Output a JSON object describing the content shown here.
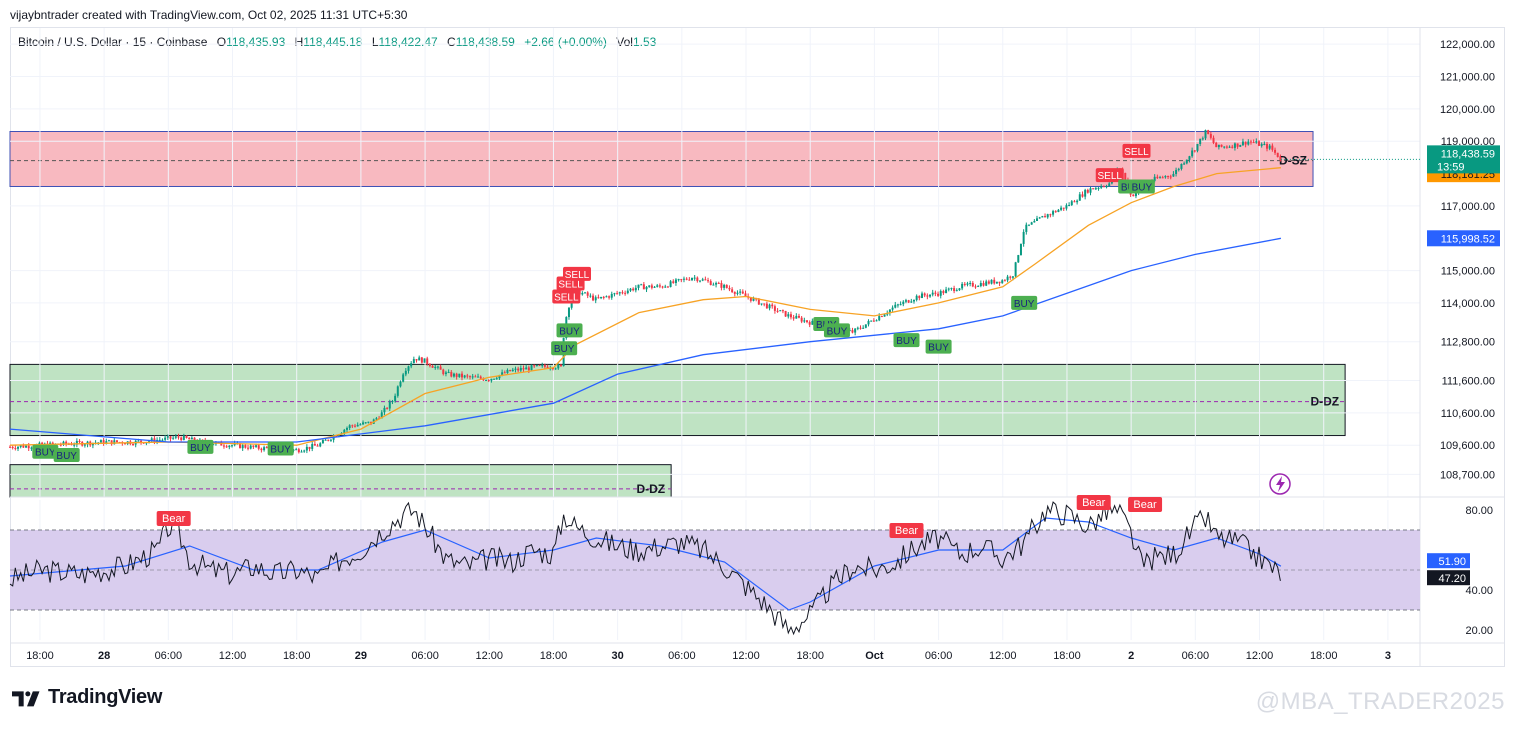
{
  "header": {
    "credit": "vijaybntrader created with TradingView.com, Oct 02, 2025 11:31 UTC+5:30"
  },
  "legend": {
    "symbol": "Bitcoin / U.S. Dollar · 15 · Coinbase",
    "o_label": "O",
    "o_value": "118,435.93",
    "h_label": "H",
    "h_value": "118,445.18",
    "l_label": "L",
    "l_value": "118,422.47",
    "c_label": "C",
    "c_value": "118,438.59",
    "change": "+2.66 (+0.00%)",
    "vol_label": "Vol",
    "vol_value": "1.53"
  },
  "colors": {
    "up": "#089981",
    "down": "#f23645",
    "ema_fast": "#f7a325",
    "ema_slow": "#2962ff",
    "supply_fill": "#f8b9c0",
    "demand_fill": "#bfe3c3",
    "rsi_band": "#d9cdee",
    "buy_label": "#4caf50",
    "sell_label": "#f23645"
  },
  "chart_data": {
    "type": "candlestick",
    "symbol": "Bitcoin / U.S. Dollar",
    "interval": "15",
    "exchange": "Coinbase",
    "ylim": [
      108000,
      122500
    ],
    "y_ticks": [
      "122,000.00",
      "121,000.00",
      "120,000.00",
      "119,000.00",
      "117,000.00",
      "115,000.00",
      "114,000.00",
      "112,800.00",
      "111,600.00",
      "110,600.00",
      "109,600.00",
      "108,700.00"
    ],
    "y_tick_values": [
      122000,
      121000,
      120000,
      119000,
      117000,
      115000,
      114000,
      112800,
      111600,
      110600,
      109600,
      108700
    ],
    "x_ticks": [
      "18:00",
      "28",
      "06:00",
      "12:00",
      "18:00",
      "29",
      "06:00",
      "12:00",
      "18:00",
      "30",
      "06:00",
      "12:00",
      "18:00",
      "Oct",
      "06:00",
      "12:00",
      "18:00",
      "2",
      "06:00",
      "12:00",
      "18:00",
      "3"
    ],
    "x_tick_times": [
      0,
      6,
      12,
      18,
      24,
      30,
      36,
      42,
      48,
      54,
      60,
      66,
      72,
      78,
      84,
      90,
      96,
      102,
      108,
      114,
      120,
      126
    ],
    "x_range_hours": [
      -2.8,
      129.0
    ],
    "price_path": [
      [
        -2.8,
        109550
      ],
      [
        0,
        109600
      ],
      [
        3,
        109650
      ],
      [
        6,
        109700
      ],
      [
        9,
        109700
      ],
      [
        12,
        109800
      ],
      [
        13,
        109850
      ],
      [
        15,
        109700
      ],
      [
        18,
        109600
      ],
      [
        21,
        109500
      ],
      [
        24,
        109450
      ],
      [
        26,
        109600
      ],
      [
        27.5,
        109900
      ],
      [
        29,
        110200
      ],
      [
        31,
        110300
      ],
      [
        32,
        110600
      ],
      [
        33,
        111000
      ],
      [
        34,
        111900
      ],
      [
        35,
        112300
      ],
      [
        36,
        112200
      ],
      [
        38,
        111800
      ],
      [
        40,
        111700
      ],
      [
        42,
        111650
      ],
      [
        44,
        111900
      ],
      [
        46,
        112000
      ],
      [
        48,
        112050
      ],
      [
        48.8,
        112000
      ],
      [
        49,
        113300
      ],
      [
        49.5,
        114000
      ],
      [
        50,
        114400
      ],
      [
        52,
        114100
      ],
      [
        54,
        114300
      ],
      [
        56,
        114500
      ],
      [
        58,
        114500
      ],
      [
        60,
        114700
      ],
      [
        61,
        114800
      ],
      [
        62,
        114700
      ],
      [
        64,
        114500
      ],
      [
        66,
        114200
      ],
      [
        68,
        113900
      ],
      [
        70,
        113600
      ],
      [
        72,
        113400
      ],
      [
        74,
        113200
      ],
      [
        76,
        113100
      ],
      [
        78,
        113500
      ],
      [
        80,
        113900
      ],
      [
        82,
        114200
      ],
      [
        84,
        114300
      ],
      [
        86,
        114500
      ],
      [
        88,
        114600
      ],
      [
        90,
        114700
      ],
      [
        91,
        114900
      ],
      [
        92,
        116300
      ],
      [
        94,
        116700
      ],
      [
        96,
        117000
      ],
      [
        98,
        117500
      ],
      [
        100,
        117700
      ],
      [
        101,
        118200
      ],
      [
        102,
        117300
      ],
      [
        103,
        117600
      ],
      [
        104,
        117800
      ],
      [
        106,
        118000
      ],
      [
        108,
        118800
      ],
      [
        109,
        119300
      ],
      [
        110,
        118800
      ],
      [
        112,
        118900
      ],
      [
        113,
        119000
      ],
      [
        115,
        118800
      ],
      [
        116,
        118438.59
      ]
    ],
    "ema_fast_path": [
      [
        -2.8,
        109600
      ],
      [
        12,
        109700
      ],
      [
        24,
        109600
      ],
      [
        30,
        110100
      ],
      [
        36,
        111200
      ],
      [
        42,
        111700
      ],
      [
        48,
        112000
      ],
      [
        50,
        112700
      ],
      [
        56,
        113700
      ],
      [
        62,
        114100
      ],
      [
        66,
        114200
      ],
      [
        72,
        113800
      ],
      [
        78,
        113600
      ],
      [
        84,
        114000
      ],
      [
        90,
        114500
      ],
      [
        93,
        115200
      ],
      [
        98,
        116400
      ],
      [
        102,
        117100
      ],
      [
        106,
        117600
      ],
      [
        110,
        118000
      ],
      [
        116,
        118181.25
      ]
    ],
    "ema_slow_path": [
      [
        -2.8,
        110100
      ],
      [
        12,
        109700
      ],
      [
        24,
        109700
      ],
      [
        36,
        110200
      ],
      [
        48,
        110900
      ],
      [
        54,
        111800
      ],
      [
        62,
        112400
      ],
      [
        72,
        112800
      ],
      [
        84,
        113200
      ],
      [
        90,
        113600
      ],
      [
        96,
        114300
      ],
      [
        102,
        115000
      ],
      [
        108,
        115500
      ],
      [
        116,
        115998.52
      ]
    ],
    "last_price": "118,438.59",
    "countdown": "13:59",
    "ema_fast_value": "118,181.25",
    "ema_slow_value": "115,998.52",
    "zones": [
      {
        "label": "D-SZ",
        "top": 119300,
        "bottom": 117600,
        "mid": 118400,
        "start": -2.8,
        "end": 119,
        "kind": "supply"
      },
      {
        "label": "D-DZ",
        "top": 112100,
        "bottom": 109900,
        "mid": 110950,
        "start": -2.8,
        "end": 122,
        "kind": "demand"
      },
      {
        "label": "D-DZ",
        "top": 109000,
        "bottom": 108000,
        "mid": 108250,
        "start": -2.8,
        "end": 59,
        "kind": "demand"
      }
    ],
    "signals": [
      {
        "type": "BUY",
        "t": 0.5,
        "price": 109400
      },
      {
        "type": "BUY",
        "t": 2.5,
        "price": 109300
      },
      {
        "type": "BUY",
        "t": 15,
        "price": 109550
      },
      {
        "type": "BUY",
        "t": 22.5,
        "price": 109500
      },
      {
        "type": "BUY",
        "t": 49,
        "price": 112600
      },
      {
        "type": "BUY",
        "t": 49.5,
        "price": 113150
      },
      {
        "type": "SELL",
        "t": 49.2,
        "price": 114200
      },
      {
        "type": "SELL",
        "t": 49.6,
        "price": 114600
      },
      {
        "type": "SELL",
        "t": 50.2,
        "price": 114900
      },
      {
        "type": "BUY",
        "t": 73.5,
        "price": 113350
      },
      {
        "type": "BUY",
        "t": 74.5,
        "price": 113150
      },
      {
        "type": "BUY",
        "t": 81,
        "price": 112850
      },
      {
        "type": "BUY",
        "t": 84,
        "price": 112650
      },
      {
        "type": "BUY",
        "t": 92,
        "price": 114000
      },
      {
        "type": "SELL",
        "t": 100,
        "price": 117950
      },
      {
        "type": "SELL",
        "t": 102.5,
        "price": 118700
      },
      {
        "type": "BUY",
        "t": 102,
        "price": 117600
      },
      {
        "type": "BUY",
        "t": 103,
        "price": 117600
      }
    ],
    "rsi": {
      "ylim": [
        15,
        85
      ],
      "y_ticks": [
        "80.00",
        "40.00",
        "20.00"
      ],
      "y_tick_values": [
        80,
        40,
        20
      ],
      "band": [
        70,
        30
      ],
      "mid": 50,
      "rsi_value": "47.20",
      "ma_value": "51.90",
      "rsi_path": [
        [
          -2.8,
          45
        ],
        [
          0,
          50
        ],
        [
          4,
          48
        ],
        [
          8,
          52
        ],
        [
          11,
          60
        ],
        [
          12,
          72
        ],
        [
          13,
          68
        ],
        [
          14,
          55
        ],
        [
          16,
          50
        ],
        [
          18,
          48
        ],
        [
          20,
          52
        ],
        [
          22,
          48
        ],
        [
          24,
          50
        ],
        [
          26,
          46
        ],
        [
          28,
          55
        ],
        [
          30,
          60
        ],
        [
          32,
          70
        ],
        [
          34,
          78
        ],
        [
          35,
          80
        ],
        [
          36,
          72
        ],
        [
          38,
          55
        ],
        [
          40,
          52
        ],
        [
          42,
          56
        ],
        [
          44,
          54
        ],
        [
          46,
          60
        ],
        [
          48,
          58
        ],
        [
          49,
          78
        ],
        [
          50,
          72
        ],
        [
          52,
          66
        ],
        [
          54,
          62
        ],
        [
          56,
          60
        ],
        [
          58,
          62
        ],
        [
          60,
          64
        ],
        [
          62,
          60
        ],
        [
          64,
          52
        ],
        [
          66,
          42
        ],
        [
          68,
          32
        ],
        [
          70,
          20
        ],
        [
          72,
          28
        ],
        [
          74,
          42
        ],
        [
          76,
          52
        ],
        [
          78,
          50
        ],
        [
          80,
          54
        ],
        [
          82,
          62
        ],
        [
          84,
          66
        ],
        [
          86,
          58
        ],
        [
          88,
          62
        ],
        [
          90,
          56
        ],
        [
          92,
          64
        ],
        [
          94,
          80
        ],
        [
          96,
          78
        ],
        [
          98,
          72
        ],
        [
          100,
          80
        ],
        [
          101,
          78
        ],
        [
          102,
          68
        ],
        [
          103,
          52
        ],
        [
          104,
          56
        ],
        [
          106,
          58
        ],
        [
          108,
          72
        ],
        [
          109,
          76
        ],
        [
          110,
          66
        ],
        [
          112,
          64
        ],
        [
          114,
          56
        ],
        [
          116,
          48
        ]
      ],
      "ma_path": [
        [
          -2.8,
          47
        ],
        [
          8,
          52
        ],
        [
          14,
          62
        ],
        [
          20,
          50
        ],
        [
          26,
          50
        ],
        [
          32,
          64
        ],
        [
          36,
          70
        ],
        [
          42,
          56
        ],
        [
          48,
          60
        ],
        [
          52,
          66
        ],
        [
          58,
          62
        ],
        [
          64,
          54
        ],
        [
          70,
          30
        ],
        [
          72,
          34
        ],
        [
          78,
          52
        ],
        [
          84,
          60
        ],
        [
          90,
          60
        ],
        [
          94,
          76
        ],
        [
          98,
          74
        ],
        [
          102,
          66
        ],
        [
          106,
          60
        ],
        [
          110,
          66
        ],
        [
          114,
          58
        ],
        [
          116,
          51.9
        ]
      ],
      "bear_labels": [
        {
          "text": "Bear",
          "t": 12.5,
          "value": 72
        },
        {
          "text": "Bear",
          "t": 81,
          "value": 66
        },
        {
          "text": "Bear",
          "t": 98.5,
          "value": 80
        },
        {
          "text": "Bear",
          "t": 103.3,
          "value": 79
        }
      ]
    }
  },
  "branding": {
    "name": "TradingView",
    "watermark": "@MBA_TRADER2025",
    "logo_icon": "tradingview-logo-icon",
    "alert_icon": "lightning-icon"
  }
}
